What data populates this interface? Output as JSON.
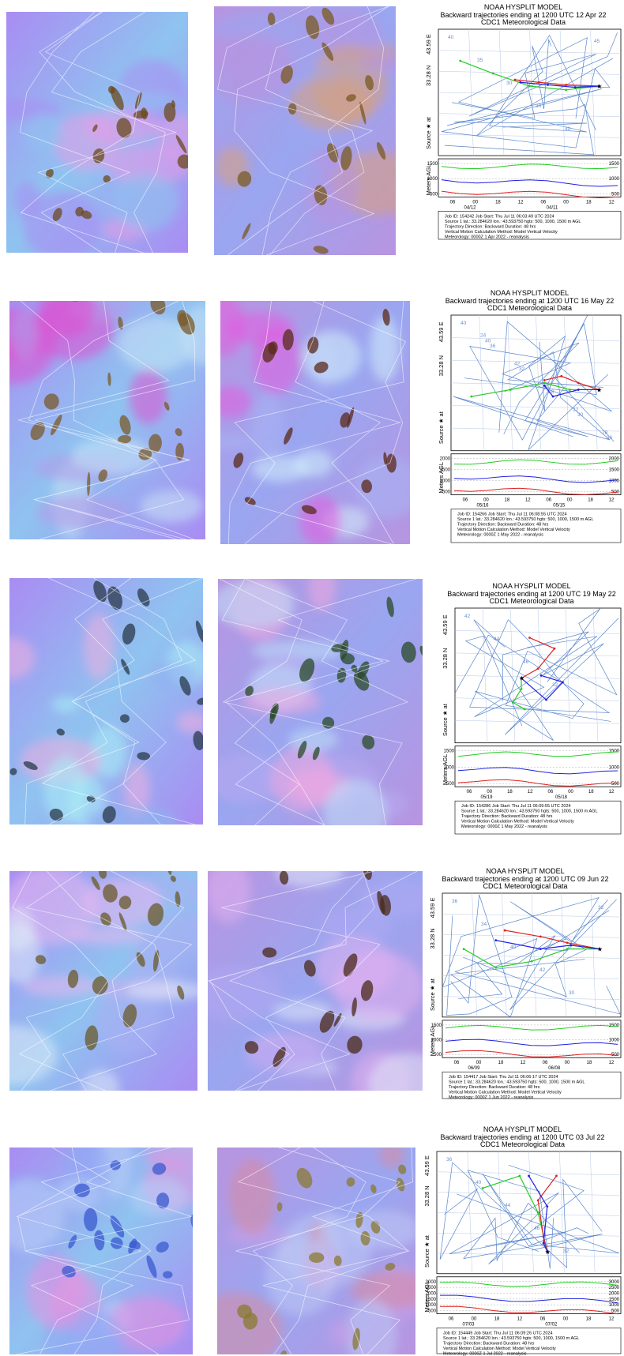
{
  "rows": [
    {
      "id": "apr12",
      "sat_left": {
        "base": "#a98cf2",
        "accent1": "#e79be8",
        "accent2": "#8fc3f0",
        "dark": "#6b4a1e"
      },
      "sat_right": {
        "base": "#b894e0",
        "accent1": "#d9a07a",
        "accent2": "#9aa6f0",
        "dark": "#7a5a22"
      },
      "hysplit": {
        "model": "NOAA HYSPLIT MODEL",
        "title": "Backward trajectories ending at 1200 UTC 12 Apr 22",
        "subtitle": "CDC1 Meteorological Data",
        "lon_label": "43.59 E",
        "lat_label": "33.28 N",
        "source_label": "Source ★ at",
        "y_axis_label": "Meters AGL",
        "levels": [
          "1500",
          "1000",
          "500"
        ],
        "time_ticks": [
          "06",
          "00",
          "18",
          "12",
          "06",
          "00",
          "18",
          "12"
        ],
        "date_ticks": [
          "04/12",
          "04/11"
        ],
        "map_numbers": [
          "40",
          "35",
          "30",
          "30",
          "40",
          "45"
        ],
        "footer": [
          "Job ID: 154242          Job Start: Thu Jul 11 06:03:49 UTC 2024",
          "Source 1 lat.: 33.284620  lon.: 43.593750  hgts: 500, 1000, 1500 m AGL",
          "Trajectory Direction: Backward     Duration: 48 hrs",
          "Vertical Motion Calculation Method:     Model Vertical Velocity",
          "Meteorology: 0000Z 1 Apr 2022 - reanalysis"
        ]
      }
    },
    {
      "id": "may16",
      "sat_left": {
        "base": "#b39be8",
        "accent1": "#e04fd0",
        "accent2": "#c9e4f6",
        "dark": "#7a5a2a"
      },
      "sat_right": {
        "base": "#a8b4f4",
        "accent1": "#e35be0",
        "accent2": "#d4f0fb",
        "dark": "#5a2a1a"
      },
      "hysplit": {
        "model": "NOAA HYSPLIT MODEL",
        "title": "Backward trajectories ending at 1200 UTC 16 May 22",
        "subtitle": "CDC1 Meteorological Data",
        "lon_label": "43.59 E",
        "lat_label": "33.28 N",
        "source_label": "Source ★ at",
        "y_axis_label": "Meters AGL",
        "levels": [
          "2000",
          "1500",
          "1000",
          "500"
        ],
        "time_ticks": [
          "06",
          "00",
          "18",
          "12",
          "06",
          "00",
          "18",
          "12"
        ],
        "date_ticks": [
          "05/16",
          "05/15"
        ],
        "map_numbers": [
          "40",
          "36",
          "32",
          "28",
          "30",
          "36",
          "40",
          "42",
          "44",
          "32",
          "28",
          "24"
        ],
        "footer": [
          "Job ID: 154266          Job Start: Thu Jul 11 06:08:55 UTC 2024",
          "Source 1 lat.: 33.284620  lon.: 43.593750  hgts: 500, 1000, 1500 m AGL",
          "Trajectory Direction: Backward     Duration: 48 hrs",
          "Vertical Motion Calculation Method:     Model Vertical Velocity",
          "Meteorology: 0000Z 1 May 2022 - reanalysis"
        ]
      }
    },
    {
      "id": "may19",
      "sat_left": {
        "base": "#8fb0f0",
        "accent1": "#f0b0e0",
        "accent2": "#aaf0f5",
        "dark": "#2a3a4a"
      },
      "sat_right": {
        "base": "#b8a8f0",
        "accent1": "#f0a8e0",
        "accent2": "#c0e0f8",
        "dark": "#2a4a2a"
      },
      "hysplit": {
        "model": "NOAA HYSPLIT MODEL",
        "title": "Backward trajectories ending at 1200 UTC 19 May 22",
        "subtitle": "CDC1 Meteorological Data",
        "lon_label": "43.59 E",
        "lat_label": "33.28 N",
        "source_label": "Source ★ at",
        "y_axis_label": "Meters AGL",
        "levels": [
          "1500",
          "1000",
          "500"
        ],
        "time_ticks": [
          "06",
          "00",
          "18",
          "12",
          "06",
          "00",
          "18",
          "12"
        ],
        "date_ticks": [
          "05/19",
          "05/18"
        ],
        "map_numbers": [
          "42",
          "44",
          "46",
          "32"
        ],
        "footer": [
          "Job ID: 154286          Job Start: Thu Jul 11 06:09:55 UTC 2024",
          "Source 1 lat.: 33.284620  lon.: 43.593750  hgts: 500, 1000, 1500 m AGL",
          "Trajectory Direction: Backward     Duration: 48 hrs",
          "Vertical Motion Calculation Method:     Model Vertical Velocity",
          "Meteorology: 0000Z 1 May 2022 - reanalysis"
        ]
      }
    },
    {
      "id": "jun09",
      "sat_left": {
        "base": "#a9b0f2",
        "accent1": "#e6b8f0",
        "accent2": "#dfeaf8",
        "dark": "#6a5a2a"
      },
      "sat_right": {
        "base": "#b0a8f2",
        "accent1": "#e0b0f0",
        "accent2": "#e0e8f8",
        "dark": "#4a2a1a"
      },
      "hysplit": {
        "model": "NOAA HYSPLIT MODEL",
        "title": "Backward trajectories ending at 1200 UTC 09 Jun 22",
        "subtitle": "CDC1 Meteorological Data",
        "lon_label": "43.59 E",
        "lat_label": "33.28 N",
        "source_label": "Source ★ at",
        "y_axis_label": "Meters AGL",
        "levels": [
          "1500",
          "1000",
          "500"
        ],
        "time_ticks": [
          "06",
          "00",
          "18",
          "12",
          "06",
          "00",
          "18",
          "12"
        ],
        "date_ticks": [
          "06/09",
          "06/08"
        ],
        "map_numbers": [
          "36",
          "34",
          "40",
          "42",
          "30",
          "32"
        ],
        "footer": [
          "Job ID: 154417          Job Start: Thu Jul 11 06:06:17 UTC 2024",
          "Source 1 lat.: 33.284620  lon.: 43.593750  hgts: 500, 1000, 1500 m AGL",
          "Trajectory Direction: Backward     Duration: 48 hrs",
          "Vertical Motion Calculation Method:     Model Vertical Velocity",
          "Meteorology: 0000Z 1 Jun 2022 - reanalysis"
        ]
      }
    },
    {
      "id": "jul03",
      "sat_left": {
        "base": "#8fa8f4",
        "accent1": "#e98fe0",
        "accent2": "#b8d0f8",
        "dark": "#3a5ad0"
      },
      "sat_right": {
        "base": "#c8a0e8",
        "accent1": "#d88aa0",
        "accent2": "#c0c8f4",
        "dark": "#8a7a30"
      },
      "hysplit": {
        "model": "NOAA HYSPLIT MODEL",
        "title": "Backward trajectories ending at 1200 UTC 03 Jul 22",
        "subtitle": "CDC1 Meteorological Data",
        "lon_label": "43.59 E",
        "lat_label": "33.28 N",
        "source_label": "Source ★ at",
        "y_axis_label": "Meters AGL",
        "levels": [
          "3000",
          "2500",
          "2000",
          "1500",
          "1000",
          "500"
        ],
        "time_ticks": [
          "06",
          "00",
          "18",
          "12",
          "06",
          "00",
          "18",
          "12"
        ],
        "date_ticks": [
          "07/03",
          "07/02"
        ],
        "map_numbers": [
          "36",
          "40",
          "44",
          "46",
          "32"
        ],
        "footer": [
          "Job ID: 154449          Job Start: Thu Jul 11 06:09:26 UTC 2024",
          "Source 1 lat.: 33.284620  lon.: 43.593750  hgts: 500, 1000, 1500 m AGL",
          "Trajectory Direction: Backward     Duration: 48 hrs",
          "Vertical Motion Calculation Method:     Model Vertical Velocity",
          "Meteorology: 0000Z 1 Jul 2022 - reanalysis"
        ]
      }
    }
  ]
}
